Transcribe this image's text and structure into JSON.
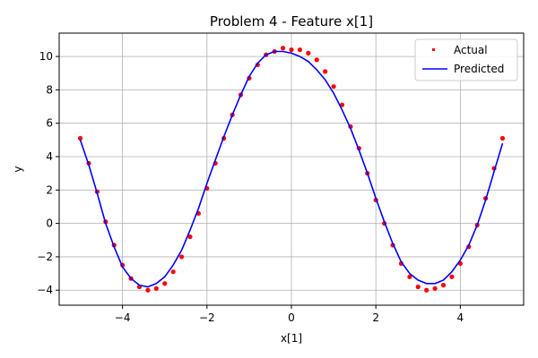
{
  "chart_data": {
    "type": "scatter",
    "title": "Problem 4 - Feature x[1]",
    "xlabel": "x[1]",
    "ylabel": "y",
    "xlim": [
      -5.5,
      5.5
    ],
    "ylim": [
      -4.9,
      11.4
    ],
    "xticks": [
      -4,
      -2,
      0,
      2,
      4
    ],
    "xtick_labels": [
      "−4",
      "−2",
      "0",
      "2",
      "4"
    ],
    "yticks": [
      -4,
      -2,
      0,
      2,
      4,
      6,
      8,
      10
    ],
    "ytick_labels": [
      "−4",
      "−2",
      "0",
      "2",
      "4",
      "6",
      "8",
      "10"
    ],
    "grid": true,
    "legend_position": "top-right",
    "series": [
      {
        "name": "Actual",
        "kind": "scatter",
        "color": "#ff0000",
        "x": [
          -5.0,
          -4.8,
          -4.6,
          -4.4,
          -4.2,
          -4.0,
          -3.8,
          -3.6,
          -3.4,
          -3.2,
          -3.0,
          -2.8,
          -2.6,
          -2.4,
          -2.2,
          -2.0,
          -1.8,
          -1.6,
          -1.4,
          -1.2,
          -1.0,
          -0.8,
          -0.6,
          -0.4,
          -0.2,
          0.0,
          0.2,
          0.4,
          0.6,
          0.8,
          1.0,
          1.2,
          1.4,
          1.6,
          1.8,
          2.0,
          2.2,
          2.4,
          2.6,
          2.8,
          3.0,
          3.2,
          3.4,
          3.6,
          3.8,
          4.0,
          4.2,
          4.4,
          4.6,
          4.8,
          5.0
        ],
        "y": [
          5.1,
          3.6,
          1.9,
          0.1,
          -1.3,
          -2.5,
          -3.3,
          -3.8,
          -4.0,
          -3.9,
          -3.6,
          -2.9,
          -2.0,
          -0.8,
          0.6,
          2.1,
          3.6,
          5.1,
          6.5,
          7.7,
          8.7,
          9.5,
          10.1,
          10.3,
          10.5,
          10.4,
          10.4,
          10.2,
          9.8,
          9.1,
          8.2,
          7.1,
          5.8,
          4.5,
          3.0,
          1.4,
          0.0,
          -1.3,
          -2.4,
          -3.2,
          -3.8,
          -4.0,
          -3.9,
          -3.7,
          -3.2,
          -2.4,
          -1.4,
          -0.1,
          1.5,
          3.3,
          5.1
        ]
      },
      {
        "name": "Predicted",
        "kind": "line",
        "color": "#0000ff",
        "x": [
          -5.0,
          -4.8,
          -4.6,
          -4.4,
          -4.2,
          -4.0,
          -3.8,
          -3.6,
          -3.4,
          -3.2,
          -3.0,
          -2.8,
          -2.6,
          -2.4,
          -2.2,
          -2.0,
          -1.8,
          -1.6,
          -1.4,
          -1.2,
          -1.0,
          -0.8,
          -0.6,
          -0.4,
          -0.2,
          0.0,
          0.2,
          0.4,
          0.6,
          0.8,
          1.0,
          1.2,
          1.4,
          1.6,
          1.8,
          2.0,
          2.2,
          2.4,
          2.6,
          2.8,
          3.0,
          3.2,
          3.4,
          3.6,
          3.8,
          4.0,
          4.2,
          4.4,
          4.6,
          4.8,
          5.0
        ],
        "y": [
          5.0,
          3.5,
          1.8,
          0.0,
          -1.4,
          -2.6,
          -3.3,
          -3.7,
          -3.8,
          -3.6,
          -3.2,
          -2.5,
          -1.6,
          -0.4,
          0.9,
          2.4,
          3.8,
          5.2,
          6.5,
          7.7,
          8.8,
          9.6,
          10.1,
          10.3,
          10.3,
          10.2,
          10.0,
          9.7,
          9.2,
          8.6,
          7.8,
          6.8,
          5.7,
          4.4,
          3.0,
          1.5,
          0.1,
          -1.2,
          -2.3,
          -3.0,
          -3.4,
          -3.6,
          -3.6,
          -3.4,
          -2.9,
          -2.2,
          -1.3,
          -0.1,
          1.4,
          3.1,
          4.8
        ]
      }
    ]
  }
}
